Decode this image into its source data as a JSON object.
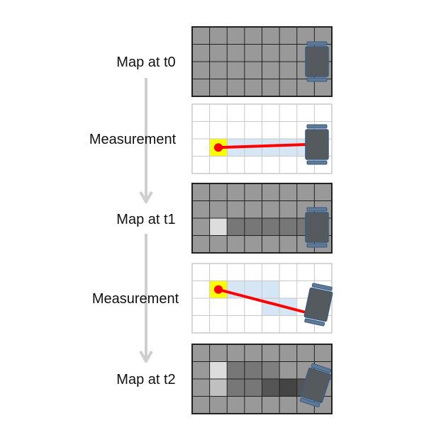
{
  "labels": {
    "t0": "Map at t0",
    "m1": "Measurement",
    "t1": "Map at t1",
    "m2": "Measurement",
    "t2": "Map at t2"
  },
  "grid": {
    "cols": 8,
    "rows": 4
  },
  "colors": {
    "map_cell": "#999999",
    "map_border": "#222222",
    "meas_cell": "#ffffff",
    "meas_border": "#c8c8c8",
    "beam_fill": "#d6e6f4",
    "endpoint": "#ffff00",
    "ray": "#ff0000",
    "robot_body": "#555a5f",
    "robot_track": "#5d7a97",
    "robot_outline": "#3a5a80",
    "arrow": "#cfcfcf"
  },
  "panels": [
    {
      "id": "t0",
      "kind": "map",
      "cells": []
    },
    {
      "id": "m1",
      "kind": "measurement",
      "hit_cell": [
        1,
        2
      ],
      "beam_cells": [
        [
          2,
          2
        ],
        [
          3,
          2
        ],
        [
          4,
          2
        ],
        [
          5,
          2
        ],
        [
          6,
          2
        ]
      ]
    },
    {
      "id": "t1",
      "kind": "map",
      "cells": [
        {
          "c": 1,
          "r": 2,
          "v": "#dddddd"
        },
        {
          "c": 2,
          "r": 2,
          "v": "#777777"
        },
        {
          "c": 3,
          "r": 2,
          "v": "#777777"
        },
        {
          "c": 4,
          "r": 2,
          "v": "#777777"
        },
        {
          "c": 5,
          "r": 2,
          "v": "#777777"
        },
        {
          "c": 6,
          "r": 2,
          "v": "#777777"
        }
      ]
    },
    {
      "id": "m2",
      "kind": "measurement",
      "hit_cell": [
        1,
        1
      ],
      "beam_cells": [
        [
          2,
          1
        ],
        [
          3,
          1
        ],
        [
          4,
          1
        ],
        [
          4,
          2
        ],
        [
          5,
          2
        ]
      ]
    },
    {
      "id": "t2",
      "kind": "map",
      "cells": [
        {
          "c": 1,
          "r": 1,
          "v": "#dddddd"
        },
        {
          "c": 2,
          "r": 1,
          "v": "#777777"
        },
        {
          "c": 3,
          "r": 1,
          "v": "#777777"
        },
        {
          "c": 4,
          "r": 1,
          "v": "#7f7f7f"
        },
        {
          "c": 1,
          "r": 2,
          "v": "#c0c0c0"
        },
        {
          "c": 2,
          "r": 2,
          "v": "#777777"
        },
        {
          "c": 3,
          "r": 2,
          "v": "#777777"
        },
        {
          "c": 4,
          "r": 2,
          "v": "#555555"
        },
        {
          "c": 5,
          "r": 2,
          "v": "#444444"
        },
        {
          "c": 6,
          "r": 2,
          "v": "#555555"
        }
      ]
    }
  ]
}
